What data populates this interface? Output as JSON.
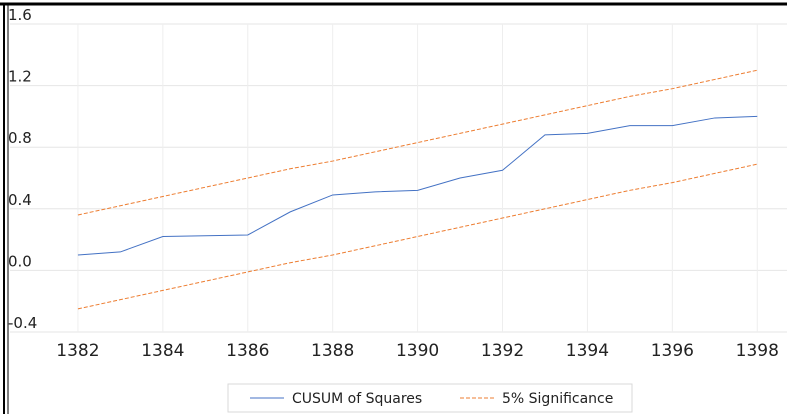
{
  "chart_data": {
    "type": "line",
    "x": [
      1382,
      1383,
      1384,
      1385,
      1386,
      1387,
      1388,
      1389,
      1390,
      1391,
      1392,
      1393,
      1394,
      1395,
      1396,
      1397,
      1398
    ],
    "series": [
      {
        "name": "CUSUM of Squares",
        "color": "#4472c4",
        "dash": false,
        "values": [
          0.1,
          0.12,
          0.22,
          0.225,
          0.23,
          0.38,
          0.49,
          0.51,
          0.52,
          0.6,
          0.65,
          0.88,
          0.89,
          0.94,
          0.94,
          0.99,
          1.0
        ]
      },
      {
        "name": "5% Significance",
        "color": "#ed7d31",
        "dash": true,
        "values": [
          0.36,
          0.42,
          0.48,
          0.54,
          0.6,
          0.66,
          0.71,
          0.77,
          0.83,
          0.89,
          0.95,
          1.01,
          1.07,
          1.13,
          1.18,
          1.24,
          1.3
        ]
      },
      {
        "color": "#ed7d31",
        "dash": true,
        "values": [
          -0.25,
          -0.19,
          -0.13,
          -0.07,
          -0.01,
          0.05,
          0.1,
          0.16,
          0.22,
          0.28,
          0.34,
          0.4,
          0.46,
          0.52,
          0.57,
          0.63,
          0.69
        ]
      }
    ],
    "xlim": [
      1380.4,
      1398.7
    ],
    "xticks": [
      1382,
      1384,
      1386,
      1388,
      1390,
      1392,
      1394,
      1396,
      1398
    ],
    "ylim": [
      -0.4,
      1.6
    ],
    "yticks": [
      -0.4,
      {
        "value": 0,
        "label": "0.0"
      },
      0.4,
      0.8,
      1.2,
      1.6
    ],
    "grid": true,
    "legend": "bottom"
  }
}
